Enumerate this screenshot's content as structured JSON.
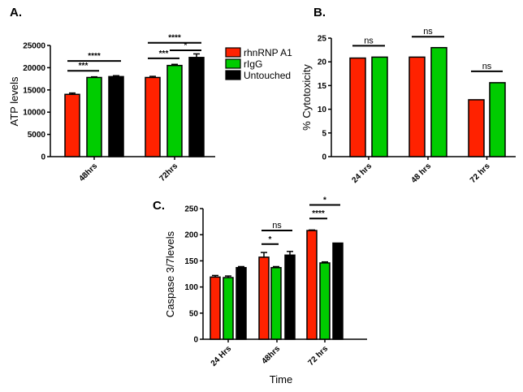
{
  "colors": {
    "rhnRNP A1": "#ff2200",
    "rIgG": "#00cc00",
    "Untouched": "#000000"
  },
  "chart_data": [
    {
      "id": "A",
      "panel_label": "A.",
      "type": "bar",
      "ylabel": "ATP levels",
      "xlabel": "",
      "ylim": [
        0,
        25000
      ],
      "yticks": [
        0,
        5000,
        10000,
        15000,
        20000,
        25000
      ],
      "categories": [
        "48hrs",
        "72hrs"
      ],
      "series": [
        {
          "name": "rhnRNP A1",
          "values": [
            14000,
            17800
          ],
          "errors": [
            300,
            250
          ]
        },
        {
          "name": "rIgG",
          "values": [
            17800,
            20500
          ],
          "errors": [
            150,
            250
          ]
        },
        {
          "name": "Untouched",
          "values": [
            18000,
            22300
          ],
          "errors": [
            200,
            800
          ]
        }
      ],
      "legend": {
        "entries": [
          "rhnRNP A1",
          "rIgG",
          "Untouched"
        ],
        "position": "right"
      },
      "significance": [
        {
          "label": "***",
          "category": 0,
          "from": 0,
          "to": 1,
          "level": 19300
        },
        {
          "label": "****",
          "category": 0,
          "from": 0,
          "to": 2,
          "level": 21500
        },
        {
          "label": "***",
          "category": 1,
          "from": 0,
          "to": 1,
          "level": 22100
        },
        {
          "label": "*",
          "category": 1,
          "from": 1,
          "to": 2,
          "level": 23900
        },
        {
          "label": "****",
          "category": 1,
          "from": 0,
          "to": 2,
          "level": 25600
        }
      ]
    },
    {
      "id": "B",
      "panel_label": "B.",
      "type": "bar",
      "ylabel": "% Cytotoxicity",
      "xlabel": "",
      "ylim": [
        0,
        25
      ],
      "yticks": [
        0,
        5,
        10,
        15,
        20,
        25
      ],
      "categories": [
        "24 hrs",
        "48 hrs",
        "72 hrs"
      ],
      "series": [
        {
          "name": "rhnRNP A1",
          "values": [
            20.8,
            21.0,
            12.0
          ],
          "errors": [
            0,
            0,
            0
          ]
        },
        {
          "name": "rIgG",
          "values": [
            21.0,
            23.0,
            15.6
          ],
          "errors": [
            0,
            0,
            0
          ]
        }
      ],
      "significance": [
        {
          "label": "ns",
          "category": 0,
          "from": 0,
          "to": 1,
          "level": 23.4
        },
        {
          "label": "ns",
          "category": 1,
          "from": 0,
          "to": 1,
          "level": 25.3
        },
        {
          "label": "ns",
          "category": 2,
          "from": 0,
          "to": 1,
          "level": 18.0
        }
      ]
    },
    {
      "id": "C",
      "panel_label": "C.",
      "type": "bar",
      "ylabel": "Caspase  3/7levels",
      "xlabel": "Time",
      "ylim": [
        0,
        250
      ],
      "yticks": [
        0,
        50,
        100,
        150,
        200,
        250
      ],
      "categories": [
        "24 Hrs",
        "48hrs",
        "72 hrs"
      ],
      "series": [
        {
          "name": "rhnRNP A1",
          "values": [
            119,
            157,
            208
          ],
          "errors": [
            3,
            9,
            1
          ]
        },
        {
          "name": "rIgG",
          "values": [
            118,
            137,
            146
          ],
          "errors": [
            3,
            2,
            2
          ]
        },
        {
          "name": "Untouched",
          "values": [
            137,
            161,
            184
          ],
          "errors": [
            2,
            7,
            0
          ]
        }
      ],
      "significance": [
        {
          "label": "*",
          "category": 1,
          "from": 0,
          "to": 1,
          "level": 182
        },
        {
          "label": "ns",
          "category": 1,
          "from": 0,
          "to": 2,
          "level": 208
        },
        {
          "label": "****",
          "category": 2,
          "from": 0,
          "to": 1,
          "level": 231
        },
        {
          "label": "*",
          "category": 2,
          "from": 0,
          "to": 2,
          "level": 257
        }
      ]
    }
  ]
}
